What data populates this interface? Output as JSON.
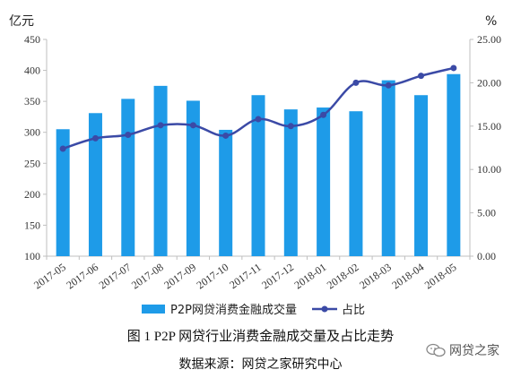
{
  "chart_data": {
    "type": "bar",
    "categories": [
      "2017-05",
      "2017-06",
      "2017-07",
      "2017-08",
      "2017-09",
      "2017-10",
      "2017-11",
      "2017-12",
      "2018-01",
      "2018-02",
      "2018-03",
      "2018-04",
      "2018-05"
    ],
    "series": [
      {
        "name": "P2P网贷消费金融成交量",
        "type": "bar",
        "axis": "left",
        "values": [
          305,
          331,
          354,
          375,
          351,
          304,
          360,
          337,
          340,
          334,
          384,
          360,
          394
        ]
      },
      {
        "name": "占比",
        "type": "line",
        "axis": "right",
        "values": [
          12.4,
          13.6,
          14.0,
          15.1,
          15.1,
          13.9,
          15.8,
          15.0,
          16.3,
          20.0,
          19.7,
          20.8,
          21.7
        ]
      }
    ],
    "left_axis": {
      "unit": "亿元",
      "ylim": [
        100,
        450
      ],
      "ticks": [
        100,
        150,
        200,
        250,
        300,
        350,
        400,
        450
      ]
    },
    "right_axis": {
      "unit": "%",
      "ylim": [
        0,
        25
      ],
      "ticks": [
        "0.00",
        "5.00",
        "10.00",
        "15.00",
        "20.00",
        "25.00"
      ]
    },
    "legend_position": "bottom",
    "grid": false,
    "colors": {
      "bar": "#1e9be8",
      "line": "#3b4aa6",
      "axis": "#bfbfbf"
    }
  },
  "caption": {
    "title": "图 1    P2P 网贷行业消费金融成交量及占比走势",
    "source": "数据来源：网贷之家研究中心"
  },
  "watermark": {
    "text": "网贷之家",
    "icon": "wechat-icon"
  }
}
